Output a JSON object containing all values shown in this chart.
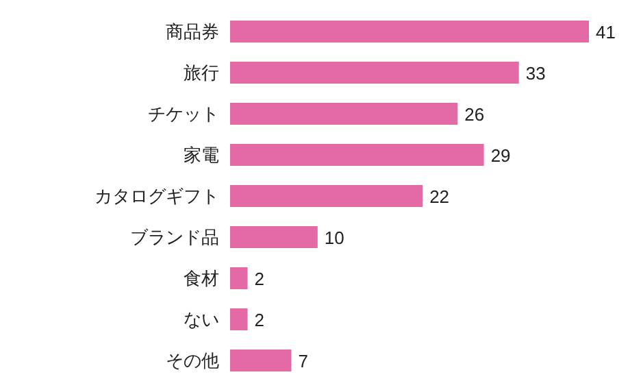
{
  "chart_data": {
    "type": "bar",
    "orientation": "horizontal",
    "data_labels": true,
    "categories": [
      "商品券",
      "旅行",
      "チケット",
      "家電",
      "カタログギフト",
      "ブランド品",
      "食材",
      "ない",
      "その他"
    ],
    "values": [
      41,
      33,
      26,
      29,
      22,
      10,
      2,
      2,
      7
    ],
    "color": "#e46aa5"
  }
}
